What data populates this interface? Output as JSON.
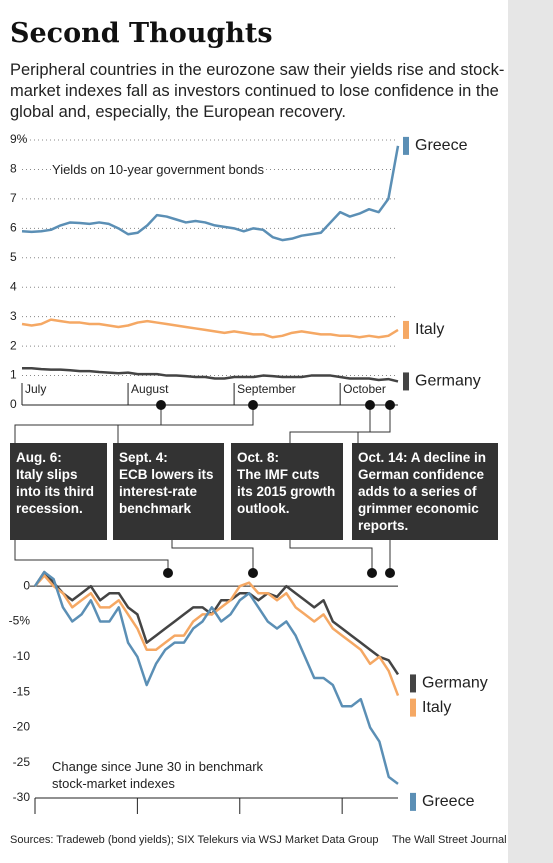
{
  "title": "Second Thoughts",
  "subtitle": "Peripheral countries in the eurozone saw their yields rise and stock-market indexes fall as investors continued to lose confidence in the global and, especially, the European recovery.",
  "annotations": [
    {
      "date": "Aug. 6:",
      "text": "Italy slips into its third recession."
    },
    {
      "date": "Sept. 4:",
      "text": "ECB lowers its interest-rate benchmark"
    },
    {
      "date": "Oct. 8:",
      "text": "The IMF cuts its 2015 growth outlook."
    },
    {
      "date": "Oct. 14:",
      "text": "A decline in German confidence adds to a series of grimmer economic reports."
    }
  ],
  "source": "Sources: Tradeweb (bond yields); SIX Telekurs via WSJ Market Data Group",
  "credit": "The Wall Street Journal",
  "chart_data": [
    {
      "type": "line",
      "label": "Yields on 10-year government bonds",
      "categories": [
        "July",
        null,
        null,
        null,
        null,
        null,
        null,
        null,
        null,
        null,
        null,
        "August",
        null,
        null,
        null,
        null,
        null,
        null,
        null,
        null,
        null,
        null,
        "September",
        null,
        null,
        null,
        null,
        null,
        null,
        null,
        null,
        null,
        null,
        "October",
        null,
        null,
        null,
        null,
        null,
        null
      ],
      "ylim": [
        0,
        9
      ],
      "yticks": [
        0,
        1,
        2,
        3,
        4,
        5,
        6,
        7,
        8,
        {
          "value": 9,
          "label": "9%"
        }
      ],
      "grid": true,
      "series": [
        {
          "name": "Greece",
          "color": "#5b8fb5",
          "values": [
            5.9,
            5.88,
            5.9,
            5.95,
            6.1,
            6.2,
            6.18,
            6.15,
            6.2,
            6.15,
            6.0,
            5.8,
            5.85,
            6.1,
            6.45,
            6.4,
            6.3,
            6.2,
            6.25,
            6.2,
            6.1,
            6.05,
            6.0,
            5.9,
            6.0,
            5.95,
            5.7,
            5.6,
            5.65,
            5.75,
            5.8,
            5.85,
            6.2,
            6.55,
            6.4,
            6.5,
            6.65,
            6.55,
            7.0,
            8.8
          ]
        },
        {
          "name": "Italy",
          "color": "#f5a864",
          "values": [
            2.75,
            2.7,
            2.75,
            2.9,
            2.85,
            2.8,
            2.8,
            2.75,
            2.75,
            2.7,
            2.65,
            2.7,
            2.8,
            2.85,
            2.8,
            2.75,
            2.7,
            2.65,
            2.6,
            2.55,
            2.5,
            2.45,
            2.5,
            2.45,
            2.4,
            2.4,
            2.3,
            2.35,
            2.45,
            2.5,
            2.45,
            2.4,
            2.4,
            2.35,
            2.35,
            2.3,
            2.35,
            2.3,
            2.35,
            2.55
          ]
        },
        {
          "name": "Germany",
          "color": "#444444",
          "values": [
            1.25,
            1.25,
            1.22,
            1.2,
            1.2,
            1.18,
            1.15,
            1.15,
            1.12,
            1.1,
            1.08,
            1.1,
            1.05,
            1.05,
            1.05,
            1.0,
            1.0,
            0.98,
            0.95,
            0.95,
            0.9,
            0.9,
            0.95,
            0.95,
            0.95,
            1.0,
            0.98,
            0.95,
            0.95,
            0.95,
            1.0,
            1.0,
            1.0,
            0.95,
            0.9,
            0.9,
            0.9,
            0.85,
            0.88,
            0.8
          ]
        }
      ]
    },
    {
      "type": "line",
      "label": "Change since June 30 in benchmark stock-market indexes",
      "ylim": [
        -30,
        3
      ],
      "yticks": [
        0,
        {
          "value": -5,
          "label": "-5%"
        },
        -10,
        -15,
        -20,
        -25,
        -30
      ],
      "grid": false,
      "series": [
        {
          "name": "Germany",
          "color": "#444444",
          "values": [
            0,
            2,
            0.5,
            -1,
            -2,
            -1,
            0,
            -2,
            -1,
            -1,
            -3,
            -4,
            -8,
            -7,
            -6,
            -5,
            -4,
            -3,
            -3,
            -4,
            -2,
            -2,
            -1,
            -1,
            -2,
            -1,
            -1.5,
            0,
            -1,
            -2,
            -3,
            -2,
            -5,
            -6,
            -7,
            -8,
            -9,
            -10,
            -10.5,
            -12.5
          ]
        },
        {
          "name": "Italy",
          "color": "#f5a864",
          "values": [
            0,
            1.5,
            0,
            -1,
            -3,
            -2,
            -1,
            -3,
            -3,
            -2,
            -4,
            -6,
            -9,
            -9,
            -8,
            -7,
            -7,
            -5,
            -4,
            -4,
            -3,
            -2,
            0,
            0.5,
            -1,
            -1,
            -2,
            -1,
            -3,
            -4,
            -5,
            -4,
            -6,
            -7,
            -8,
            -9,
            -11,
            -10,
            -12,
            -15.5
          ]
        },
        {
          "name": "Greece",
          "color": "#5b8fb5",
          "values": [
            0,
            2,
            1,
            -3,
            -5,
            -4,
            -2,
            -5,
            -5,
            -3,
            -8,
            -10,
            -14,
            -11,
            -9,
            -8,
            -8,
            -6,
            -5,
            -3,
            -5,
            -4,
            -2,
            -1,
            -3,
            -5,
            -6,
            -5,
            -7,
            -10,
            -13,
            -13,
            -14,
            -17,
            -17,
            -16,
            -20,
            -22,
            -27,
            -28
          ]
        }
      ]
    }
  ]
}
